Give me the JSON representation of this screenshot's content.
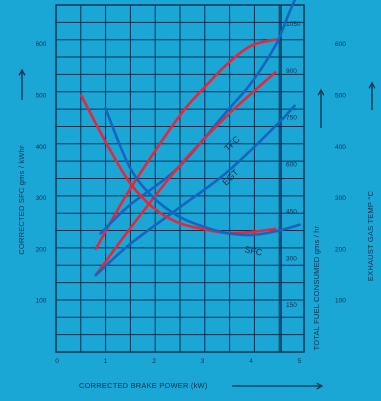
{
  "chart_data": {
    "type": "line",
    "title": "",
    "grid": true,
    "colors": {
      "background": "#1ba7d6",
      "grid": "#0c2f52",
      "red": "#e8263a",
      "blue": "#1565c0",
      "text": "#0c2f52"
    },
    "x_axis": {
      "label": "CORRECTED BRAKE POWER (kW)",
      "range": [
        0,
        5.5
      ],
      "ticks": [
        "0",
        "1",
        "2",
        "3",
        "4",
        "5"
      ]
    },
    "y_left": {
      "label": "CORRECTED SFC gms / kWhr",
      "range": [
        0,
        700
      ],
      "ticks": [
        "100",
        "200",
        "300",
        "400",
        "500",
        "600"
      ]
    },
    "y_right_fuel": {
      "label": "TOTAL FUEL CONSUMED gms / hr",
      "range": [
        0,
        1150
      ],
      "ticks": [
        "150",
        "300",
        "450",
        "600",
        "750",
        "900",
        "1050"
      ]
    },
    "y_right_egt": {
      "label": "EXHAUST GAS TEMP °C",
      "range": [
        0,
        700
      ],
      "ticks": [
        "100",
        "200",
        "300",
        "400",
        "500",
        "600"
      ]
    },
    "curve_labels": [
      "TFC",
      "EGT",
      "SFC"
    ],
    "series": [
      {
        "name": "TFC",
        "color": "red",
        "axis": "fuel",
        "x": [
          0.8,
          1.5,
          2.5,
          3.0,
          3.5,
          4.0,
          4.5
        ],
        "y": [
          330,
          520,
          750,
          840,
          920,
          980,
          1000
        ]
      },
      {
        "name": "TFC",
        "color": "blue",
        "axis": "fuel",
        "x": [
          0.9,
          1.5,
          2.5,
          3.5,
          4.0,
          4.5,
          4.8,
          5.0
        ],
        "y": [
          380,
          470,
          590,
          770,
          860,
          980,
          1090,
          1160
        ]
      },
      {
        "name": "EGT",
        "color": "red",
        "axis": "egt",
        "x": [
          0.8,
          1.5,
          2.5,
          3.5,
          4.5
        ],
        "y": [
          150,
          240,
          360,
          460,
          545
        ]
      },
      {
        "name": "EGT",
        "color": "blue",
        "axis": "egt",
        "x": [
          0.8,
          1.5,
          2.5,
          3.5,
          4.5,
          4.9
        ],
        "y": [
          150,
          210,
          280,
          350,
          440,
          480
        ]
      },
      {
        "name": "SFC",
        "color": "red",
        "axis": "sfc",
        "x": [
          0.5,
          1.0,
          1.5,
          2.0,
          2.5,
          3.0,
          3.5,
          4.0,
          4.5
        ],
        "y": [
          500,
          410,
          330,
          280,
          252,
          240,
          232,
          234,
          240
        ]
      },
      {
        "name": "SFC",
        "color": "blue",
        "axis": "sfc",
        "x": [
          1.0,
          1.5,
          2.0,
          2.5,
          3.0,
          3.5,
          4.0,
          4.5,
          5.0
        ],
        "y": [
          475,
          360,
          300,
          265,
          245,
          232,
          228,
          235,
          248
        ]
      }
    ]
  }
}
